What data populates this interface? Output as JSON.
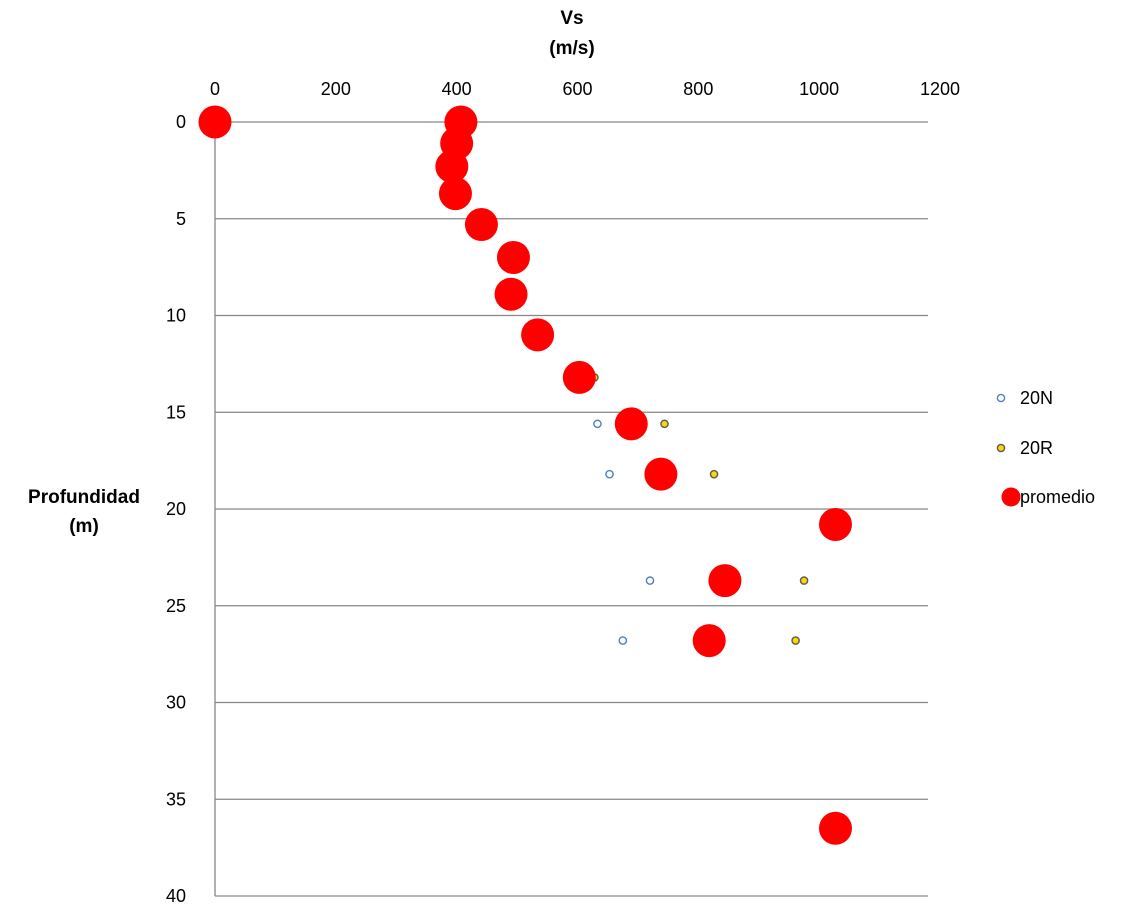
{
  "chart_data": {
    "type": "scatter",
    "xlabel_line1": "Vs",
    "xlabel_line2": "(m/s)",
    "ylabel_line1": "Profundidad",
    "ylabel_line2": "(m)",
    "xlim": [
      0,
      1200
    ],
    "ylim": [
      0,
      40
    ],
    "x_ticks": [
      0,
      200,
      400,
      600,
      800,
      1000,
      1200
    ],
    "y_ticks": [
      0,
      5,
      10,
      15,
      20,
      25,
      30,
      35,
      40
    ],
    "x_axis_position": "top",
    "y_axis_inverted": true,
    "grid": "horizontal",
    "legend_position": "right",
    "series": [
      {
        "name": "20N",
        "marker": "hollow-circle",
        "color": "#4F81BD",
        "fill": "#ffffff",
        "points": [
          {
            "x": 585,
            "y": 13.2
          },
          {
            "x": 633,
            "y": 15.6
          },
          {
            "x": 653,
            "y": 18.2
          },
          {
            "x": 720,
            "y": 23.7
          },
          {
            "x": 675,
            "y": 26.8
          }
        ]
      },
      {
        "name": "20R",
        "marker": "filled-circle",
        "color": "#595959",
        "fill": "#FFD700",
        "points": [
          {
            "x": 628,
            "y": 13.2
          },
          {
            "x": 744,
            "y": 15.6
          },
          {
            "x": 826,
            "y": 18.2
          },
          {
            "x": 975,
            "y": 23.7
          },
          {
            "x": 961,
            "y": 26.8
          }
        ]
      },
      {
        "name": "promedio",
        "marker": "filled-circle",
        "color": "#FF0000",
        "fill": "#FF0000",
        "points": [
          {
            "x": 0,
            "y": 0
          },
          {
            "x": 407,
            "y": 0
          },
          {
            "x": 400,
            "y": 1.1
          },
          {
            "x": 392,
            "y": 2.3
          },
          {
            "x": 398,
            "y": 3.7
          },
          {
            "x": 441,
            "y": 5.3
          },
          {
            "x": 494,
            "y": 7.0
          },
          {
            "x": 490,
            "y": 8.9
          },
          {
            "x": 534,
            "y": 11.0
          },
          {
            "x": 603,
            "y": 13.2
          },
          {
            "x": 689,
            "y": 15.6
          },
          {
            "x": 738,
            "y": 18.2
          },
          {
            "x": 1027,
            "y": 20.8
          },
          {
            "x": 844,
            "y": 23.7
          },
          {
            "x": 818,
            "y": 26.8
          },
          {
            "x": 1027,
            "y": 36.5
          }
        ]
      }
    ]
  }
}
